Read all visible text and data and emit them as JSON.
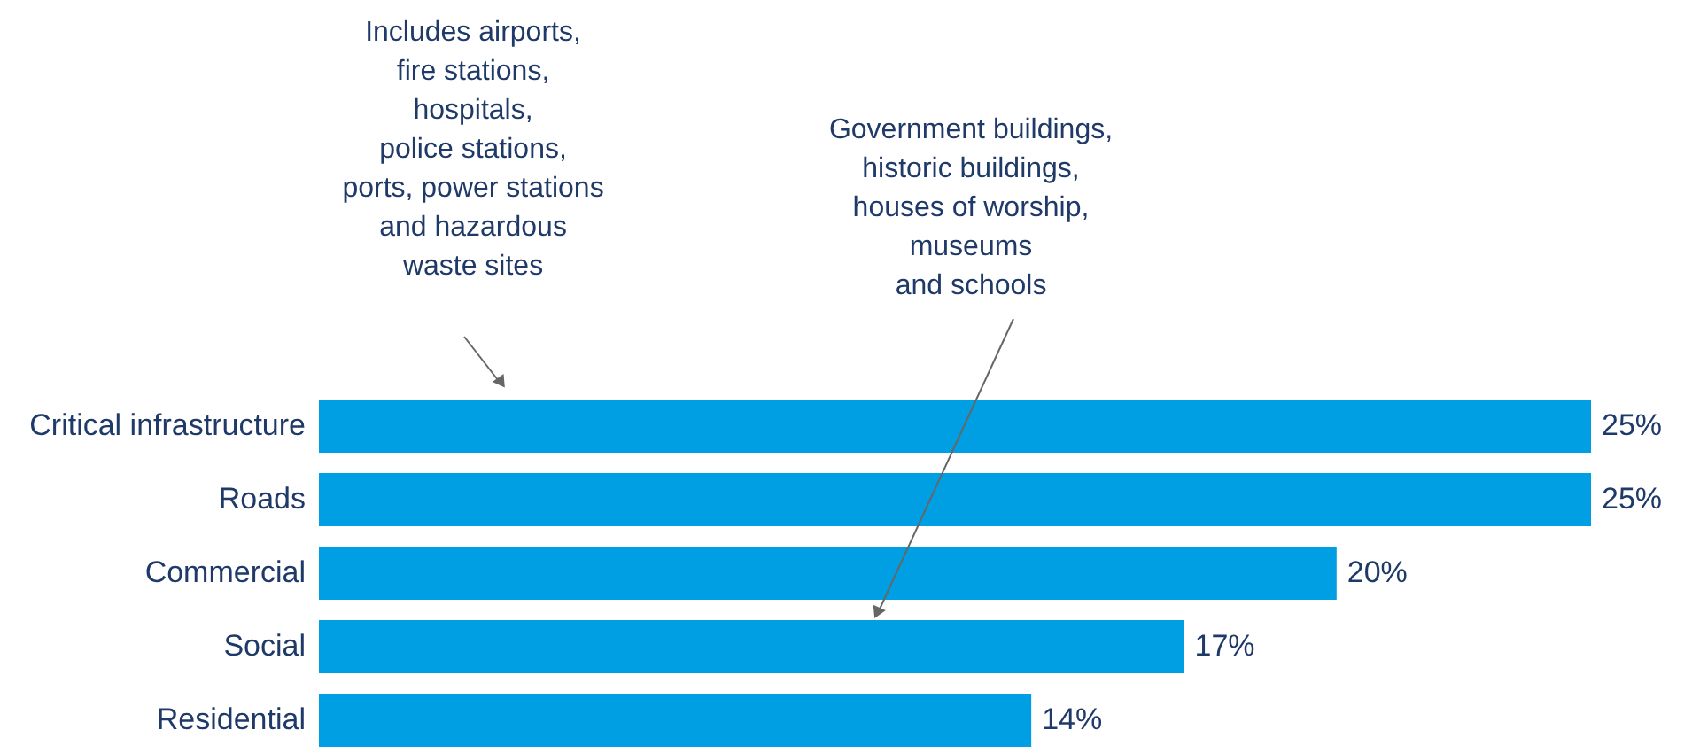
{
  "chart_data": {
    "type": "bar",
    "orientation": "horizontal",
    "categories": [
      "Critical infrastructure",
      "Roads",
      "Commercial",
      "Social",
      "Residential"
    ],
    "values": [
      25,
      25,
      20,
      17,
      14
    ],
    "value_labels": [
      "25%",
      "25%",
      "20%",
      "17%",
      "14%"
    ],
    "color": "#009fe3",
    "annotations": [
      "Includes airports,\nfire stations,\nhospitals,\npolice stations,\nports, power stations\nand hazardous\nwaste sites",
      "Government buildings,\nhistoric buildings,\nhouses of worship,\nmuseums\nand schools"
    ]
  }
}
